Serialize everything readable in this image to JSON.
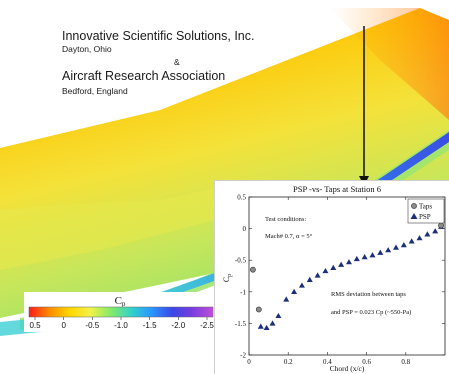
{
  "organizations": {
    "org1_name": "Innovative Scientific Solutions, Inc.",
    "org1_location": "Dayton, Ohio",
    "ampersand": "&",
    "org2_name": "Aircraft Research Association",
    "org2_location": "Bedford, England"
  },
  "colorbar": {
    "label": "Cp",
    "ticks": [
      "0.5",
      "0",
      "-0.5",
      "-1.0",
      "-1.5",
      "-2.0",
      "-2.5"
    ],
    "range": [
      0.5,
      -2.5
    ],
    "colormap": [
      "#ff1a1a",
      "#ff8c00",
      "#ffd700",
      "#f2f24a",
      "#86ea6a",
      "#32d2c8",
      "#2a96ff",
      "#3b46e6",
      "#7a3ce0",
      "#c24dda"
    ]
  },
  "chart_data": {
    "type": "scatter",
    "title": "PSP -vs- Taps at Station 6",
    "xlabel": "Chord (x/c)",
    "ylabel": "Cp",
    "xlim": [
      0,
      1
    ],
    "ylim": [
      -2,
      0.5
    ],
    "xticks": [
      0,
      0.2,
      0.4,
      0.6,
      0.8
    ],
    "xtick_labels": [
      "0",
      "0.2",
      "0.4",
      "0.6",
      "0.8"
    ],
    "yticks": [
      0.5,
      0,
      -0.5,
      -1,
      -1.5,
      -2
    ],
    "ytick_labels": [
      "0.5",
      "0",
      "-0.5",
      "-1",
      "-1.5",
      "-2"
    ],
    "grid": false,
    "legend": "top-right",
    "series": [
      {
        "name": "Taps",
        "marker": "circle",
        "color": "#8a8a8a",
        "x": [
          0.02,
          0.05,
          0.98
        ],
        "y": [
          -0.65,
          -1.28,
          0.05
        ]
      },
      {
        "name": "PSP",
        "marker": "triangle",
        "color": "#1c2f7a",
        "x": [
          0.06,
          0.09,
          0.12,
          0.15,
          0.19,
          0.23,
          0.27,
          0.31,
          0.35,
          0.39,
          0.43,
          0.47,
          0.51,
          0.55,
          0.59,
          0.63,
          0.67,
          0.71,
          0.75,
          0.79,
          0.83,
          0.87,
          0.91,
          0.95,
          0.98
        ],
        "y": [
          -1.55,
          -1.57,
          -1.5,
          -1.38,
          -1.12,
          -1.0,
          -0.9,
          -0.81,
          -0.74,
          -0.67,
          -0.62,
          -0.57,
          -0.53,
          -0.48,
          -0.45,
          -0.42,
          -0.38,
          -0.34,
          -0.3,
          -0.26,
          -0.2,
          -0.15,
          -0.09,
          -0.04,
          0.03
        ]
      }
    ],
    "annotations": [
      "Test conditions:",
      "Mach# 0.7,   α = 5°",
      "RMS deviation between taps",
      "and PSP = 0.023 Cp (~550-Pa)"
    ]
  }
}
